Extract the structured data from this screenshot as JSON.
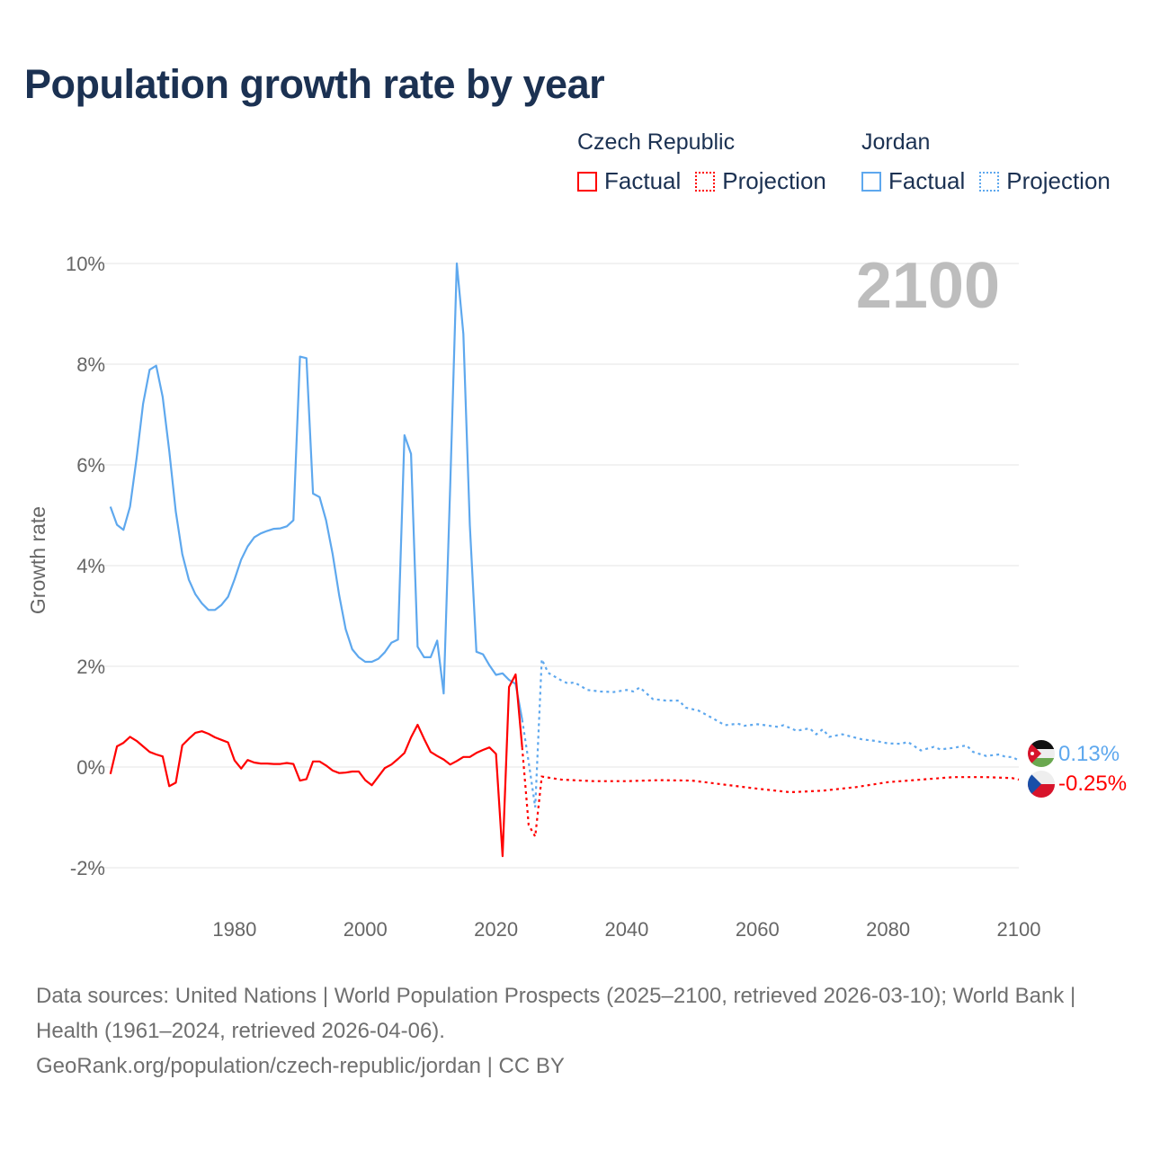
{
  "title": "Population growth rate by year",
  "legend": {
    "groups": [
      {
        "country": "Czech Republic",
        "factual": "Factual",
        "projection": "Projection",
        "color": "#ff0000"
      },
      {
        "country": "Jordan",
        "factual": "Factual",
        "projection": "Projection",
        "color": "#5ea8ee"
      }
    ]
  },
  "footer": {
    "sources": "Data sources: United Nations | World Population Prospects (2025–2100, retrieved 2026-03-10); World Bank | Health (1961–2024, retrieved 2026-04-06).",
    "credit": "GeoRank.org/population/czech-republic/jordan | CC BY"
  },
  "chart_data": {
    "type": "line",
    "title": "Population growth rate by year",
    "ylabel": "Growth rate",
    "xlabel": "",
    "year_display": "2100",
    "xlim": [
      1961,
      2100
    ],
    "ylim": [
      -2,
      10
    ],
    "x_ticks": [
      "1980",
      "2000",
      "2020",
      "2040",
      "2060",
      "2080",
      "2100"
    ],
    "x_tick_values": [
      1980,
      2000,
      2020,
      2040,
      2060,
      2080,
      2100
    ],
    "y_ticks": [
      "-2%",
      "0%",
      "2%",
      "4%",
      "6%",
      "8%",
      "10%"
    ],
    "y_tick_values": [
      -2,
      0,
      2,
      4,
      6,
      8,
      10
    ],
    "grid": true,
    "legend_position": "top-right",
    "series": [
      {
        "name": "Jordan",
        "color": "#5ea8ee",
        "end_label": "0.13%",
        "factual": [
          [
            1961,
            5.17
          ],
          [
            1962,
            4.81
          ],
          [
            1963,
            4.71
          ],
          [
            1964,
            5.17
          ],
          [
            1965,
            6.13
          ],
          [
            1966,
            7.21
          ],
          [
            1967,
            7.89
          ],
          [
            1968,
            7.97
          ],
          [
            1969,
            7.35
          ],
          [
            1970,
            6.28
          ],
          [
            1971,
            5.07
          ],
          [
            1972,
            4.23
          ],
          [
            1973,
            3.72
          ],
          [
            1974,
            3.43
          ],
          [
            1975,
            3.25
          ],
          [
            1976,
            3.12
          ],
          [
            1977,
            3.12
          ],
          [
            1978,
            3.22
          ],
          [
            1979,
            3.38
          ],
          [
            1980,
            3.73
          ],
          [
            1981,
            4.12
          ],
          [
            1982,
            4.38
          ],
          [
            1983,
            4.56
          ],
          [
            1984,
            4.64
          ],
          [
            1985,
            4.69
          ],
          [
            1986,
            4.73
          ],
          [
            1987,
            4.74
          ],
          [
            1988,
            4.78
          ],
          [
            1989,
            4.9
          ],
          [
            1990,
            8.15
          ],
          [
            1991,
            8.12
          ],
          [
            1992,
            5.43
          ],
          [
            1993,
            5.36
          ],
          [
            1994,
            4.9
          ],
          [
            1995,
            4.23
          ],
          [
            1996,
            3.41
          ],
          [
            1997,
            2.74
          ],
          [
            1998,
            2.34
          ],
          [
            1999,
            2.18
          ],
          [
            2000,
            2.09
          ],
          [
            2001,
            2.09
          ],
          [
            2002,
            2.15
          ],
          [
            2003,
            2.28
          ],
          [
            2004,
            2.47
          ],
          [
            2005,
            2.53
          ],
          [
            2006,
            6.59
          ],
          [
            2007,
            6.22
          ],
          [
            2008,
            2.39
          ],
          [
            2009,
            2.18
          ],
          [
            2010,
            2.18
          ],
          [
            2011,
            2.51
          ],
          [
            2012,
            1.46
          ],
          [
            2013,
            5.6
          ],
          [
            2014,
            10.0
          ],
          [
            2015,
            8.6
          ],
          [
            2016,
            4.8
          ],
          [
            2017,
            2.29
          ],
          [
            2018,
            2.24
          ],
          [
            2019,
            2.02
          ],
          [
            2020,
            1.83
          ],
          [
            2021,
            1.86
          ],
          [
            2022,
            1.73
          ],
          [
            2023,
            1.65
          ],
          [
            2024,
            0.94
          ]
        ],
        "projection": [
          [
            2024,
            0.94
          ],
          [
            2025,
            0.1
          ],
          [
            2026,
            -0.8
          ],
          [
            2027,
            2.14
          ],
          [
            2028,
            1.87
          ],
          [
            2030,
            1.72
          ],
          [
            2031,
            1.66
          ],
          [
            2032,
            1.68
          ],
          [
            2034,
            1.53
          ],
          [
            2036,
            1.5
          ],
          [
            2038,
            1.49
          ],
          [
            2040,
            1.53
          ],
          [
            2041,
            1.5
          ],
          [
            2042,
            1.58
          ],
          [
            2044,
            1.35
          ],
          [
            2046,
            1.32
          ],
          [
            2048,
            1.32
          ],
          [
            2049,
            1.18
          ],
          [
            2051,
            1.12
          ],
          [
            2053,
            0.98
          ],
          [
            2055,
            0.83
          ],
          [
            2057,
            0.86
          ],
          [
            2058,
            0.82
          ],
          [
            2060,
            0.85
          ],
          [
            2063,
            0.8
          ],
          [
            2064,
            0.83
          ],
          [
            2066,
            0.72
          ],
          [
            2068,
            0.77
          ],
          [
            2069,
            0.65
          ],
          [
            2070,
            0.75
          ],
          [
            2071,
            0.6
          ],
          [
            2073,
            0.65
          ],
          [
            2076,
            0.55
          ],
          [
            2078,
            0.52
          ],
          [
            2080,
            0.47
          ],
          [
            2082,
            0.46
          ],
          [
            2083,
            0.5
          ],
          [
            2085,
            0.33
          ],
          [
            2087,
            0.4
          ],
          [
            2088,
            0.35
          ],
          [
            2090,
            0.38
          ],
          [
            2092,
            0.43
          ],
          [
            2093,
            0.3
          ],
          [
            2095,
            0.22
          ],
          [
            2097,
            0.25
          ],
          [
            2098,
            0.2
          ],
          [
            2099,
            0.2
          ],
          [
            2100,
            0.13
          ]
        ]
      },
      {
        "name": "Czech Republic",
        "color": "#ff0000",
        "end_label": "-0.25%",
        "factual": [
          [
            1961,
            -0.14
          ],
          [
            1962,
            0.41
          ],
          [
            1963,
            0.48
          ],
          [
            1964,
            0.6
          ],
          [
            1965,
            0.52
          ],
          [
            1966,
            0.41
          ],
          [
            1967,
            0.3
          ],
          [
            1968,
            0.25
          ],
          [
            1969,
            0.21
          ],
          [
            1970,
            -0.38
          ],
          [
            1971,
            -0.31
          ],
          [
            1972,
            0.43
          ],
          [
            1973,
            0.56
          ],
          [
            1974,
            0.68
          ],
          [
            1975,
            0.71
          ],
          [
            1976,
            0.66
          ],
          [
            1977,
            0.59
          ],
          [
            1978,
            0.54
          ],
          [
            1979,
            0.49
          ],
          [
            1980,
            0.13
          ],
          [
            1981,
            -0.03
          ],
          [
            1982,
            0.14
          ],
          [
            1983,
            0.09
          ],
          [
            1984,
            0.07
          ],
          [
            1985,
            0.07
          ],
          [
            1986,
            0.06
          ],
          [
            1987,
            0.06
          ],
          [
            1988,
            0.08
          ],
          [
            1989,
            0.06
          ],
          [
            1990,
            -0.27
          ],
          [
            1991,
            -0.24
          ],
          [
            1992,
            0.11
          ],
          [
            1993,
            0.11
          ],
          [
            1994,
            0.03
          ],
          [
            1995,
            -0.07
          ],
          [
            1996,
            -0.12
          ],
          [
            1997,
            -0.11
          ],
          [
            1998,
            -0.09
          ],
          [
            1999,
            -0.09
          ],
          [
            2000,
            -0.26
          ],
          [
            2001,
            -0.36
          ],
          [
            2002,
            -0.19
          ],
          [
            2003,
            -0.02
          ],
          [
            2004,
            0.05
          ],
          [
            2005,
            0.16
          ],
          [
            2006,
            0.28
          ],
          [
            2007,
            0.59
          ],
          [
            2008,
            0.84
          ],
          [
            2009,
            0.56
          ],
          [
            2010,
            0.3
          ],
          [
            2011,
            0.22
          ],
          [
            2012,
            0.15
          ],
          [
            2013,
            0.05
          ],
          [
            2014,
            0.12
          ],
          [
            2015,
            0.2
          ],
          [
            2016,
            0.2
          ],
          [
            2017,
            0.28
          ],
          [
            2018,
            0.34
          ],
          [
            2019,
            0.39
          ],
          [
            2020,
            0.26
          ],
          [
            2021,
            -1.77
          ],
          [
            2022,
            1.59
          ],
          [
            2023,
            1.84
          ],
          [
            2024,
            0.39
          ]
        ],
        "projection": [
          [
            2024,
            0.39
          ],
          [
            2025,
            -1.15
          ],
          [
            2026,
            -1.38
          ],
          [
            2027,
            -0.19
          ],
          [
            2030,
            -0.25
          ],
          [
            2035,
            -0.28
          ],
          [
            2040,
            -0.28
          ],
          [
            2045,
            -0.26
          ],
          [
            2050,
            -0.27
          ],
          [
            2055,
            -0.35
          ],
          [
            2060,
            -0.43
          ],
          [
            2065,
            -0.5
          ],
          [
            2070,
            -0.47
          ],
          [
            2075,
            -0.4
          ],
          [
            2080,
            -0.3
          ],
          [
            2085,
            -0.25
          ],
          [
            2090,
            -0.2
          ],
          [
            2095,
            -0.2
          ],
          [
            2099,
            -0.22
          ],
          [
            2100,
            -0.25
          ]
        ]
      }
    ]
  }
}
